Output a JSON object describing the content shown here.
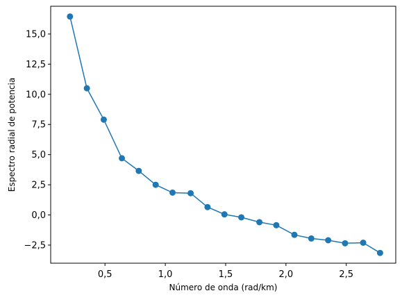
{
  "chart_data": {
    "type": "line",
    "title": "",
    "xlabel": "Número de onda  (rad/km)",
    "ylabel": "Espectro radial de potencia",
    "xlim": [
      0.05,
      2.91
    ],
    "ylim": [
      -4.0,
      17.3
    ],
    "grid": false,
    "line_color": "#1f77b4",
    "marker": "circle",
    "x_ticks": [
      {
        "value": 0.5,
        "label": "0,5"
      },
      {
        "value": 1.0,
        "label": "1,0"
      },
      {
        "value": 1.5,
        "label": "1,5"
      },
      {
        "value": 2.0,
        "label": "2,0"
      },
      {
        "value": 2.5,
        "label": "2,5"
      }
    ],
    "y_ticks": [
      {
        "value": -2.5,
        "label": "−2,5"
      },
      {
        "value": 0.0,
        "label": "0,0"
      },
      {
        "value": 2.5,
        "label": "2,5"
      },
      {
        "value": 5.0,
        "label": "5,0"
      },
      {
        "value": 7.5,
        "label": "7,5"
      },
      {
        "value": 10.0,
        "label": "10,0"
      },
      {
        "value": 12.5,
        "label": "12,5"
      },
      {
        "value": 15.0,
        "label": "15,0"
      }
    ],
    "series": [
      {
        "x": [
          0.21,
          0.35,
          0.49,
          0.64,
          0.78,
          0.92,
          1.06,
          1.21,
          1.35,
          1.49,
          1.63,
          1.78,
          1.92,
          2.07,
          2.21,
          2.35,
          2.49,
          2.64,
          2.78
        ],
        "y": [
          16.45,
          10.5,
          7.9,
          4.7,
          3.65,
          2.5,
          1.85,
          1.8,
          0.65,
          0.05,
          -0.2,
          -0.6,
          -0.85,
          -1.65,
          -1.95,
          -2.1,
          -2.35,
          -2.3,
          -3.15
        ]
      }
    ]
  }
}
